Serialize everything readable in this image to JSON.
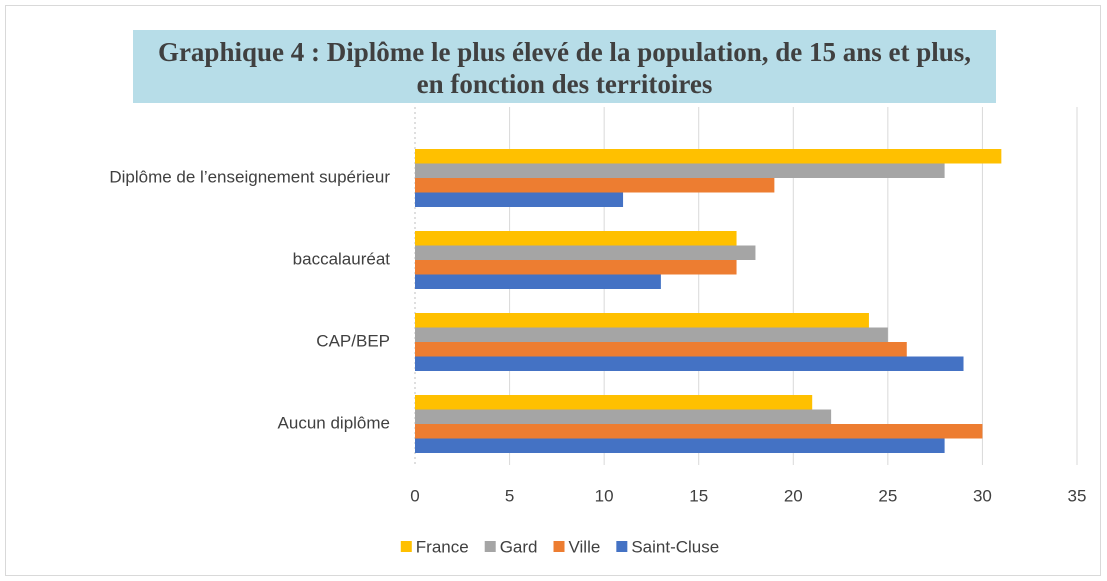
{
  "chart_data": {
    "type": "hbar",
    "title": "Graphique 4 : Diplôme le plus élevé de la population, de 15 ans et plus, en fonction des territoires",
    "categories": [
      "Diplôme de l’enseignement supérieur",
      "baccalauréat",
      "CAP/BEP",
      "Aucun diplôme"
    ],
    "series": [
      {
        "name": "France",
        "color": "#ffc000",
        "values": [
          31,
          17,
          24,
          21
        ]
      },
      {
        "name": "Gard",
        "color": "#a5a5a5",
        "values": [
          28,
          18,
          25,
          22
        ]
      },
      {
        "name": "Ville",
        "color": "#ed7d31",
        "values": [
          19,
          17,
          26,
          30
        ]
      },
      {
        "name": "Saint-Cluse",
        "color": "#4472c4",
        "values": [
          11,
          13,
          29,
          28
        ]
      }
    ],
    "xlim": [
      0,
      35
    ],
    "xticks": [
      0,
      5,
      10,
      15,
      20,
      25,
      30,
      35
    ],
    "grid": true,
    "legend": "bottom"
  }
}
